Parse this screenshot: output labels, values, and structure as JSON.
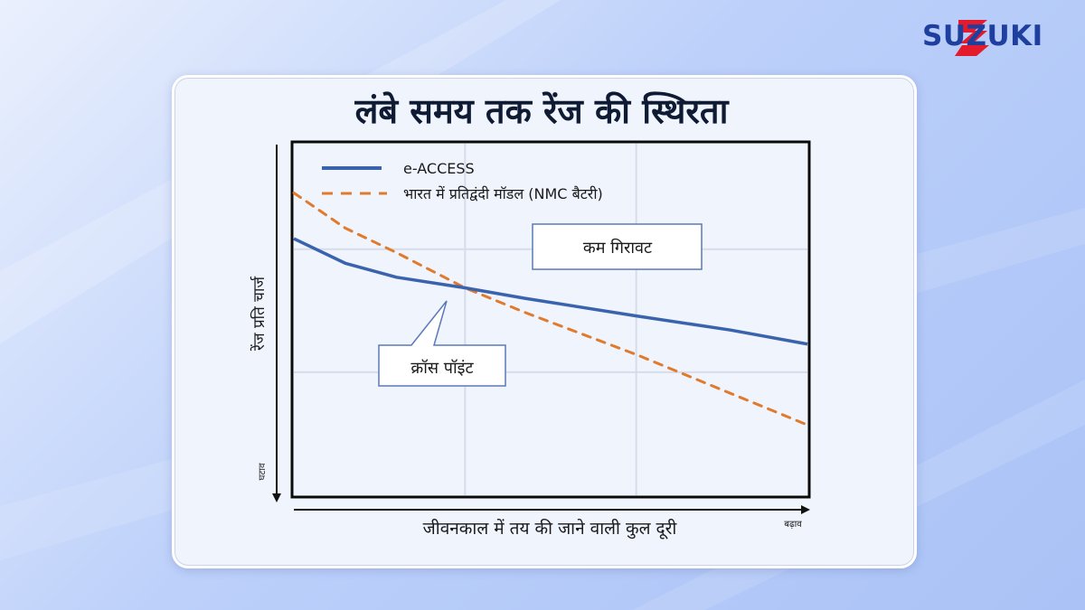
{
  "brand": {
    "logo_text": "SUZUKI",
    "accent": "#e41b2c",
    "text_color": "#1e3f9e"
  },
  "chart_data": {
    "type": "line",
    "title": "लंबे समय तक रेंज की स्थिरता",
    "xlabel": "जीवनकाल में तय की जाने वाली कुल दूरी",
    "ylabel": "रेंज प्रति चार्ज",
    "x_direction_label": "बढ़ाव",
    "y_direction_label": "घटाव",
    "xlim": [
      0,
      100
    ],
    "ylim": [
      0,
      100
    ],
    "grid": true,
    "legend_position": "top-left",
    "x": [
      0,
      10,
      20,
      33.3,
      45,
      66.7,
      85,
      100
    ],
    "series": [
      {
        "name": "e-ACCESS",
        "color": "#3a63ad",
        "style": "solid",
        "values": [
          73,
          66,
          62,
          59,
          56,
          51,
          47,
          43
        ]
      },
      {
        "name": "भारत में प्रतिद्वंदी मॉडल (NMC बैटरी)",
        "color": "#e07b2e",
        "style": "dashed",
        "values": [
          86,
          76,
          69,
          59,
          52,
          40,
          29,
          20
        ]
      }
    ],
    "annotations": [
      {
        "text": "कम गिरावट",
        "type": "box"
      },
      {
        "text": "क्रॉस पॉइंट",
        "type": "callout",
        "points_to": [
          33.3,
          59
        ]
      }
    ]
  }
}
